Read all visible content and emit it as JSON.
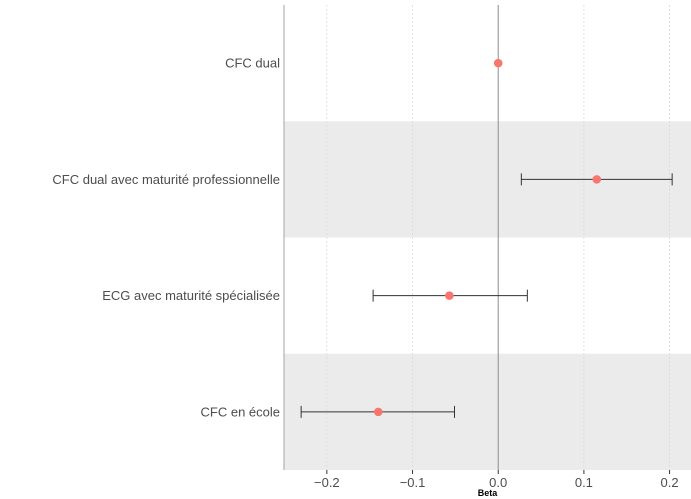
{
  "chart_data": {
    "type": "scatter",
    "title": "",
    "xlabel": "Beta",
    "ylabel": "",
    "xlim": [
      -0.25,
      0.225
    ],
    "xticks": [
      -0.2,
      -0.1,
      0.0,
      0.1,
      0.2
    ],
    "xtick_labels": [
      "−0.2",
      "−0.1",
      "0.0",
      "0.1",
      "0.2"
    ],
    "grid": true,
    "reference_line_x": 0,
    "alternating_row_shading": true,
    "categories": [
      "CFC dual",
      "CFC dual avec maturité professionnelle",
      "ECG avec maturité spécialisée",
      "CFC en école"
    ],
    "estimates": [
      0.0,
      0.115,
      -0.057,
      -0.14
    ],
    "ci_lower": [
      null,
      0.027,
      -0.146,
      -0.23
    ],
    "ci_upper": [
      null,
      0.203,
      0.034,
      -0.051
    ]
  },
  "colors": {
    "point": "#F8766D",
    "shade": "#EBEBEB",
    "grid": "#D9D9D9",
    "zero_line": "#8C8C8C",
    "errorbar": "#333333",
    "text": "#4d4d4d"
  }
}
